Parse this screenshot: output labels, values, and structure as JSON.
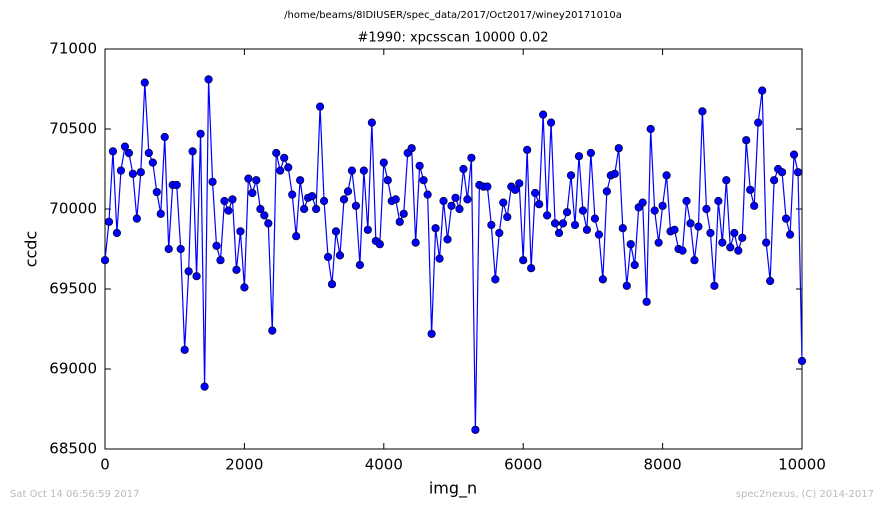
{
  "chart_data": {
    "type": "line",
    "supertitle": "/home/beams/8IDIUSER/spec_data/2017/Oct2017/winey20171010a",
    "title": "#1990: xpcsscan 10000 0.02",
    "xlabel": "img_n",
    "ylabel": "ccdc",
    "footer_left": "Sat Oct 14 06:56:59 2017",
    "footer_right": "spec2nexus, (C) 2014-2017",
    "color": "#0000ff",
    "x": [
      0,
      57,
      114,
      171,
      229,
      286,
      343,
      400,
      457,
      514,
      571,
      629,
      686,
      743,
      800,
      857,
      914,
      971,
      1029,
      1086,
      1143,
      1200,
      1257,
      1314,
      1371,
      1429,
      1486,
      1543,
      1600,
      1657,
      1714,
      1771,
      1829,
      1886,
      1943,
      2000,
      2057,
      2114,
      2171,
      2229,
      2286,
      2343,
      2400,
      2457,
      2514,
      2571,
      2629,
      2686,
      2743,
      2800,
      2857,
      2914,
      2971,
      3029,
      3086,
      3143,
      3200,
      3257,
      3314,
      3371,
      3429,
      3486,
      3543,
      3600,
      3657,
      3714,
      3771,
      3829,
      3886,
      3943,
      4000,
      4057,
      4114,
      4171,
      4229,
      4286,
      4343,
      4400,
      4457,
      4514,
      4571,
      4629,
      4686,
      4743,
      4800,
      4857,
      4914,
      4971,
      5029,
      5086,
      5143,
      5200,
      5257,
      5314,
      5371,
      5429,
      5486,
      5543,
      5600,
      5657,
      5714,
      5771,
      5829,
      5886,
      5943,
      6000,
      6057,
      6114,
      6171,
      6229,
      6286,
      6343,
      6400,
      6457,
      6514,
      6571,
      6629,
      6686,
      6743,
      6800,
      6857,
      6914,
      6971,
      7029,
      7086,
      7143,
      7200,
      7257,
      7314,
      7371,
      7429,
      7486,
      7543,
      7600,
      7657,
      7714,
      7771,
      7829,
      7886,
      7943,
      8000,
      8057,
      8114,
      8171,
      8229,
      8286,
      8343,
      8400,
      8457,
      8514,
      8571,
      8629,
      8686,
      8743,
      8800,
      8857,
      8914,
      8971,
      9029,
      9086,
      9143,
      9200,
      9257,
      9314,
      9371,
      9429,
      9486,
      9543,
      9600,
      9657,
      9714,
      9771,
      9829,
      9886,
      9943,
      10000
    ],
    "values": [
      69680,
      69920,
      70360,
      69850,
      70240,
      70390,
      70350,
      70220,
      69940,
      70230,
      70790,
      70350,
      70290,
      70106,
      69970,
      70450,
      69750,
      70150,
      70150,
      69750,
      69120,
      69610,
      70360,
      69580,
      70470,
      68890,
      70810,
      70170,
      69770,
      69680,
      70050,
      69990,
      70060,
      69620,
      69860,
      69510,
      70190,
      70100,
      70180,
      70000,
      69960,
      69910,
      69240,
      70350,
      70240,
      70320,
      70260,
      70090,
      69830,
      70180,
      70000,
      70070,
      70080,
      70000,
      70640,
      70050,
      69700,
      69530,
      69860,
      69710,
      70060,
      70110,
      70240,
      70020,
      69650,
      70240,
      69870,
      70540,
      69800,
      69780,
      70290,
      70180,
      70050,
      70060,
      69920,
      69970,
      70350,
      70380,
      69790,
      70270,
      70180,
      70090,
      69220,
      69880,
      69690,
      70050,
      69810,
      70020,
      70070,
      70000,
      70250,
      70060,
      70320,
      68620,
      70150,
      70140,
      70140,
      69900,
      69560,
      69850,
      70040,
      69950,
      70140,
      70120,
      70160,
      69680,
      70370,
      69630,
      70100,
      70030,
      70590,
      69960,
      70540,
      69910,
      69850,
      69910,
      69980,
      70210,
      69900,
      70330,
      69990,
      69870,
      70350,
      69940,
      69840,
      69560,
      70110,
      70210,
      70220,
      70380,
      69880,
      69520,
      69780,
      69650,
      70010,
      70040,
      69420,
      70500,
      69990,
      69790,
      70020,
      70210,
      69860,
      69870,
      69750,
      69740,
      70050,
      69910,
      69680,
      69890,
      70610,
      70000,
      69850,
      69520,
      70050,
      69790,
      70180,
      69760,
      69850,
      69740,
      69820,
      70430,
      70120,
      70020,
      70540,
      70740,
      69790,
      69550,
      70180,
      70250,
      70230,
      69940,
      69840,
      70340,
      70230,
      69050
    ],
    "xlim": [
      0,
      10000
    ],
    "xticks": [
      0,
      2000,
      4000,
      6000,
      8000,
      10000
    ],
    "ylim": [
      68500,
      71000
    ],
    "yticks": [
      68500,
      69000,
      69500,
      70000,
      70500,
      71000
    ]
  }
}
